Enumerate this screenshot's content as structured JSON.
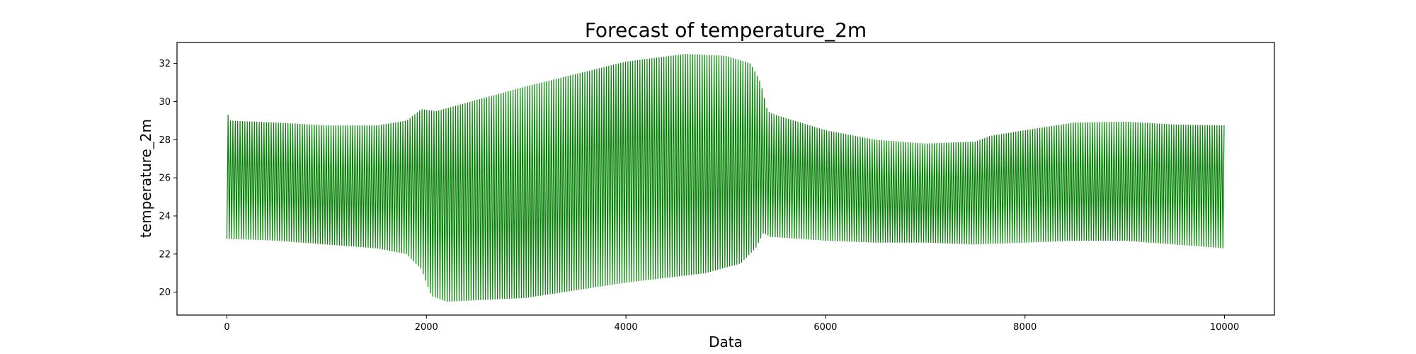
{
  "chart_data": {
    "type": "line",
    "title": "Forecast of temperature_2m",
    "xlabel": "Data",
    "ylabel": "temperature_2m",
    "xlim": [
      -500,
      10500
    ],
    "ylim": [
      18.8,
      33.1
    ],
    "xticks": [
      0,
      2000,
      4000,
      6000,
      8000,
      10000
    ],
    "yticks": [
      20,
      22,
      24,
      26,
      28,
      30,
      32
    ],
    "grid": false,
    "legend": "none",
    "series": [
      {
        "color": "#008000",
        "period": 24,
        "x_range": [
          0,
          10000
        ],
        "upper_envelope": [
          [
            0,
            29.5
          ],
          [
            30,
            29.0
          ],
          [
            500,
            28.9
          ],
          [
            1000,
            28.75
          ],
          [
            1500,
            28.75
          ],
          [
            1800,
            29.0
          ],
          [
            1950,
            29.6
          ],
          [
            2100,
            29.5
          ],
          [
            3000,
            30.8
          ],
          [
            4000,
            32.1
          ],
          [
            4600,
            32.5
          ],
          [
            5000,
            32.4
          ],
          [
            5250,
            32.0
          ],
          [
            5350,
            31.0
          ],
          [
            5420,
            29.5
          ],
          [
            5500,
            29.3
          ],
          [
            6000,
            28.5
          ],
          [
            6500,
            28.0
          ],
          [
            7000,
            27.8
          ],
          [
            7500,
            27.9
          ],
          [
            7650,
            28.2
          ],
          [
            8000,
            28.5
          ],
          [
            8500,
            28.9
          ],
          [
            9000,
            28.95
          ],
          [
            9500,
            28.8
          ],
          [
            10000,
            28.75
          ]
        ],
        "lower_envelope": [
          [
            0,
            22.8
          ],
          [
            500,
            22.7
          ],
          [
            1000,
            22.5
          ],
          [
            1500,
            22.3
          ],
          [
            1800,
            22.0
          ],
          [
            1950,
            21.2
          ],
          [
            2050,
            19.8
          ],
          [
            2200,
            19.5
          ],
          [
            3000,
            19.7
          ],
          [
            4000,
            20.5
          ],
          [
            4800,
            21.0
          ],
          [
            5150,
            21.5
          ],
          [
            5300,
            22.3
          ],
          [
            5380,
            23.1
          ],
          [
            5450,
            22.9
          ],
          [
            6000,
            22.7
          ],
          [
            6500,
            22.6
          ],
          [
            7000,
            22.6
          ],
          [
            7500,
            22.5
          ],
          [
            8000,
            22.6
          ],
          [
            8500,
            22.7
          ],
          [
            9000,
            22.7
          ],
          [
            9500,
            22.5
          ],
          [
            10000,
            22.3
          ]
        ]
      }
    ]
  }
}
